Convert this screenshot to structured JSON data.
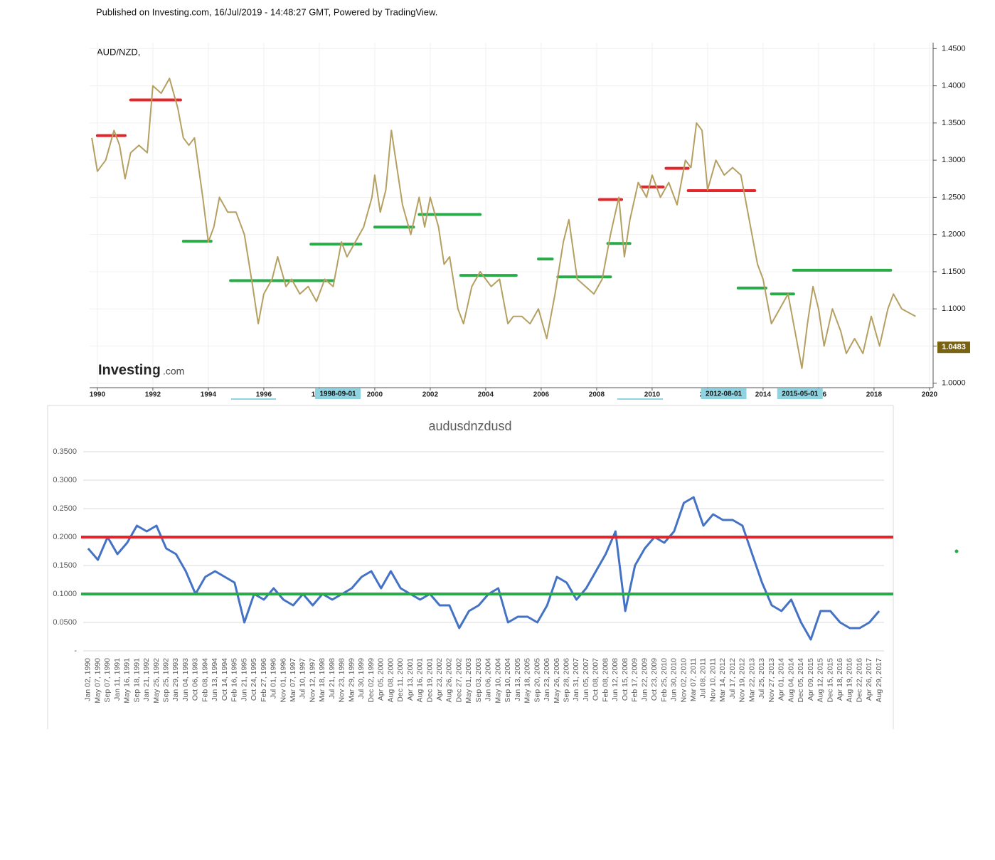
{
  "header": {
    "text": "Published on Investing.com, 16/Jul/2019 - 14:48:27 GMT, Powered by TradingView."
  },
  "logo": [
    "Investing",
    ".com"
  ],
  "chart_data": [
    {
      "type": "line",
      "title": "AUD/NZD,",
      "x": [
        1989.8,
        1990.0,
        1990.3,
        1990.6,
        1990.8,
        1991.0,
        1991.2,
        1991.5,
        1991.8,
        1992.0,
        1992.3,
        1992.6,
        1992.9,
        1993.1,
        1993.3,
        1993.5,
        1993.8,
        1994.0,
        1994.2,
        1994.4,
        1994.7,
        1995.0,
        1995.3,
        1995.6,
        1995.8,
        1996.0,
        1996.3,
        1996.5,
        1996.8,
        1997.0,
        1997.3,
        1997.6,
        1997.9,
        1998.2,
        1998.5,
        1998.8,
        1999.0,
        1999.3,
        1999.6,
        1999.9,
        2000.0,
        2000.2,
        2000.4,
        2000.6,
        2000.8,
        2001.0,
        2001.3,
        2001.6,
        2001.8,
        2002.0,
        2002.3,
        2002.5,
        2002.7,
        2003.0,
        2003.2,
        2003.5,
        2003.8,
        2004.0,
        2004.2,
        2004.5,
        2004.8,
        2005.0,
        2005.3,
        2005.6,
        2005.9,
        2006.2,
        2006.5,
        2006.8,
        2007.0,
        2007.3,
        2007.6,
        2007.9,
        2008.2,
        2008.5,
        2008.8,
        2009.0,
        2009.2,
        2009.5,
        2009.8,
        2010.0,
        2010.3,
        2010.6,
        2010.9,
        2011.2,
        2011.4,
        2011.6,
        2011.8,
        2012.0,
        2012.3,
        2012.6,
        2012.9,
        2013.2,
        2013.5,
        2013.8,
        2014.0,
        2014.3,
        2014.6,
        2014.9,
        2015.2,
        2015.4,
        2015.6,
        2015.8,
        2016.0,
        2016.2,
        2016.5,
        2016.8,
        2017.0,
        2017.3,
        2017.6,
        2017.9,
        2018.2,
        2018.5,
        2018.7,
        2019.0,
        2019.5
      ],
      "series": [
        {
          "color": "#b5a062",
          "values": [
            1.33,
            1.285,
            1.3,
            1.34,
            1.32,
            1.275,
            1.31,
            1.32,
            1.31,
            1.4,
            1.39,
            1.41,
            1.37,
            1.33,
            1.32,
            1.33,
            1.25,
            1.19,
            1.21,
            1.25,
            1.23,
            1.23,
            1.2,
            1.13,
            1.08,
            1.12,
            1.14,
            1.17,
            1.13,
            1.14,
            1.12,
            1.13,
            1.11,
            1.14,
            1.13,
            1.19,
            1.17,
            1.19,
            1.21,
            1.25,
            1.28,
            1.23,
            1.26,
            1.34,
            1.29,
            1.24,
            1.2,
            1.25,
            1.21,
            1.25,
            1.21,
            1.16,
            1.17,
            1.1,
            1.08,
            1.13,
            1.15,
            1.14,
            1.13,
            1.14,
            1.08,
            1.09,
            1.09,
            1.08,
            1.1,
            1.06,
            1.12,
            1.19,
            1.22,
            1.14,
            1.13,
            1.12,
            1.14,
            1.2,
            1.25,
            1.17,
            1.22,
            1.27,
            1.25,
            1.28,
            1.25,
            1.27,
            1.24,
            1.3,
            1.29,
            1.35,
            1.34,
            1.26,
            1.3,
            1.28,
            1.29,
            1.28,
            1.22,
            1.16,
            1.14,
            1.08,
            1.1,
            1.12,
            1.06,
            1.02,
            1.08,
            1.13,
            1.1,
            1.05,
            1.1,
            1.07,
            1.04,
            1.06,
            1.04,
            1.09,
            1.05,
            1.1,
            1.12,
            1.1,
            1.09
          ]
        }
      ],
      "levels": [
        {
          "start": 1990.0,
          "end": 1991.0,
          "value": 1.333,
          "color": "#e3262b"
        },
        {
          "start": 1991.2,
          "end": 1993.0,
          "value": 1.381,
          "color": "#e3262b"
        },
        {
          "start": 1993.1,
          "end": 1994.1,
          "value": 1.191,
          "color": "#2aab4a"
        },
        {
          "start": 1994.8,
          "end": 1998.5,
          "value": 1.138,
          "color": "#2aab4a"
        },
        {
          "start": 1997.7,
          "end": 1999.5,
          "value": 1.187,
          "color": "#2aab4a"
        },
        {
          "start": 2000.0,
          "end": 2001.4,
          "value": 1.21,
          "color": "#2aab4a"
        },
        {
          "start": 2001.6,
          "end": 2003.8,
          "value": 1.227,
          "color": "#2aab4a"
        },
        {
          "start": 2003.1,
          "end": 2005.1,
          "value": 1.145,
          "color": "#2aab4a"
        },
        {
          "start": 2005.9,
          "end": 2006.4,
          "value": 1.167,
          "color": "#2aab4a"
        },
        {
          "start": 2006.6,
          "end": 2008.5,
          "value": 1.143,
          "color": "#2aab4a"
        },
        {
          "start": 2008.1,
          "end": 2008.9,
          "value": 1.247,
          "color": "#e3262b"
        },
        {
          "start": 2008.4,
          "end": 2009.2,
          "value": 1.188,
          "color": "#2aab4a"
        },
        {
          "start": 2009.6,
          "end": 2010.4,
          "value": 1.264,
          "color": "#e3262b"
        },
        {
          "start": 2010.5,
          "end": 2011.3,
          "value": 1.289,
          "color": "#e3262b"
        },
        {
          "start": 2011.3,
          "end": 2013.7,
          "value": 1.259,
          "color": "#e3262b"
        },
        {
          "start": 2013.1,
          "end": 2014.1,
          "value": 1.128,
          "color": "#2aab4a"
        },
        {
          "start": 2014.3,
          "end": 2015.1,
          "value": 1.12,
          "color": "#2aab4a"
        },
        {
          "start": 2015.1,
          "end": 2018.6,
          "value": 1.152,
          "color": "#2aab4a"
        }
      ],
      "last_value": 1.0483,
      "x_markers": [
        {
          "value": 1998.67,
          "label": "1998-09-01"
        },
        {
          "value": 2012.58,
          "label": "2012-08-01"
        },
        {
          "value": 2015.33,
          "label": "2015-05-01"
        }
      ],
      "xlim": [
        1989.72,
        2020.13
      ],
      "xticks": [
        1990,
        1992,
        1994,
        1996,
        1998,
        2000,
        2002,
        2004,
        2006,
        2008,
        2010,
        2012,
        2014,
        2016,
        2018,
        2020
      ],
      "ylim": [
        0.994,
        1.458
      ],
      "yticks": [
        {
          "value": 1.0,
          "label": "1.0000"
        },
        {
          "value": 1.05,
          "label": "1.0500"
        },
        {
          "value": 1.1,
          "label": "1.1000"
        },
        {
          "value": 1.15,
          "label": "1.1500"
        },
        {
          "value": 1.2,
          "label": "1.2000"
        },
        {
          "value": 1.25,
          "label": "1.2500"
        },
        {
          "value": 1.3,
          "label": "1.3000"
        },
        {
          "value": 1.35,
          "label": "1.3500"
        },
        {
          "value": 1.4,
          "label": "1.4000"
        },
        {
          "value": 1.45,
          "label": "1.4500"
        }
      ],
      "y_axis_side": "right",
      "grid": true
    },
    {
      "type": "line",
      "title": "audusdnzdusd",
      "categories": [
        "Jan 02, 1990",
        "May 07, 1990",
        "Sep 07, 1990",
        "Jan 11, 1991",
        "May 16, 1991",
        "Sep 18, 1991",
        "Jan 21, 1992",
        "May 25, 1992",
        "Sep 25, 1992",
        "Jan 29, 1993",
        "Jun 04, 1993",
        "Oct 06, 1993",
        "Feb 08, 1994",
        "Jun 13, 1994",
        "Oct 14, 1994",
        "Feb 16, 1995",
        "Jun 21, 1995",
        "Oct 24, 1995",
        "Feb 27, 1996",
        "Jul 01, 1996",
        "Nov 01, 1996",
        "Mar 07, 1997",
        "Jul 10, 1997",
        "Nov 12, 1997",
        "Mar 18, 1998",
        "Jul 21, 1998",
        "Nov 23, 1998",
        "Mar 29, 1999",
        "Jul 30, 1999",
        "Dec 02, 1999",
        "Apr 05, 2000",
        "Aug 08, 2000",
        "Dec 11, 2000",
        "Apr 13, 2001",
        "Aug 16, 2001",
        "Dec 19, 2001",
        "Apr 23, 2002",
        "Aug 26, 2002",
        "Dec 27, 2002",
        "May 01, 2003",
        "Sep 03, 2003",
        "Jan 06, 2004",
        "May 10, 2004",
        "Sep 10, 2004",
        "Jan 13, 2005",
        "May 18, 2005",
        "Sep 20, 2005",
        "Jan 23, 2006",
        "May 26, 2006",
        "Sep 28, 2006",
        "Jan 31, 2007",
        "Jun 05, 2007",
        "Oct 08, 2007",
        "Feb 08, 2008",
        "Jun 12, 2008",
        "Oct 15, 2008",
        "Feb 17, 2009",
        "Jun 22, 2009",
        "Oct 23, 2009",
        "Feb 25, 2010",
        "Jun 30, 2010",
        "Nov 02, 2010",
        "Mar 07, 2011",
        "Jul 08, 2011",
        "Nov 10, 2011",
        "Mar 14, 2012",
        "Jul 17, 2012",
        "Nov 19, 2012",
        "Mar 22, 2013",
        "Jul 25, 2013",
        "Nov 27, 2013",
        "Apr 01, 2014",
        "Aug 04, 2014",
        "Dec 05, 2014",
        "Apr 09, 2015",
        "Aug 12, 2015",
        "Dec 15, 2015",
        "Apr 18, 2016",
        "Aug 19, 2016",
        "Dec 22, 2016",
        "Apr 26, 2017",
        "Aug 29, 2017"
      ],
      "series": [
        {
          "color": "#4472c4",
          "values": [
            0.18,
            0.16,
            0.2,
            0.17,
            0.19,
            0.22,
            0.21,
            0.22,
            0.18,
            0.17,
            0.14,
            0.1,
            0.13,
            0.14,
            0.13,
            0.12,
            0.05,
            0.1,
            0.09,
            0.11,
            0.09,
            0.08,
            0.1,
            0.08,
            0.1,
            0.09,
            0.1,
            0.11,
            0.13,
            0.14,
            0.11,
            0.14,
            0.11,
            0.1,
            0.09,
            0.1,
            0.08,
            0.08,
            0.04,
            0.07,
            0.08,
            0.1,
            0.11,
            0.05,
            0.06,
            0.06,
            0.05,
            0.08,
            0.13,
            0.12,
            0.09,
            0.11,
            0.14,
            0.17,
            0.21,
            0.07,
            0.15,
            0.18,
            0.2,
            0.19,
            0.21,
            0.26,
            0.27,
            0.22,
            0.24,
            0.23,
            0.23,
            0.22,
            0.17,
            0.12,
            0.08,
            0.07,
            0.09,
            0.05,
            0.02,
            0.07,
            0.07,
            0.05,
            0.04,
            0.04,
            0.05,
            0.07
          ]
        }
      ],
      "reference_lines": [
        {
          "value": 0.2,
          "color": "#e3262b"
        },
        {
          "value": 0.1,
          "color": "#2aab4a"
        }
      ],
      "ylim": [
        0,
        0.35
      ],
      "yticks": [
        {
          "value": 0,
          "label": "-"
        },
        {
          "value": 0.05,
          "label": "0.0500"
        },
        {
          "value": 0.1,
          "label": "0.1000"
        },
        {
          "value": 0.15,
          "label": "0.1500"
        },
        {
          "value": 0.2,
          "label": "0.2000"
        },
        {
          "value": 0.25,
          "label": "0.2500"
        },
        {
          "value": 0.3,
          "label": "0.3000"
        },
        {
          "value": 0.35,
          "label": "0.3500"
        }
      ],
      "y_axis_side": "left",
      "grid": true
    }
  ]
}
